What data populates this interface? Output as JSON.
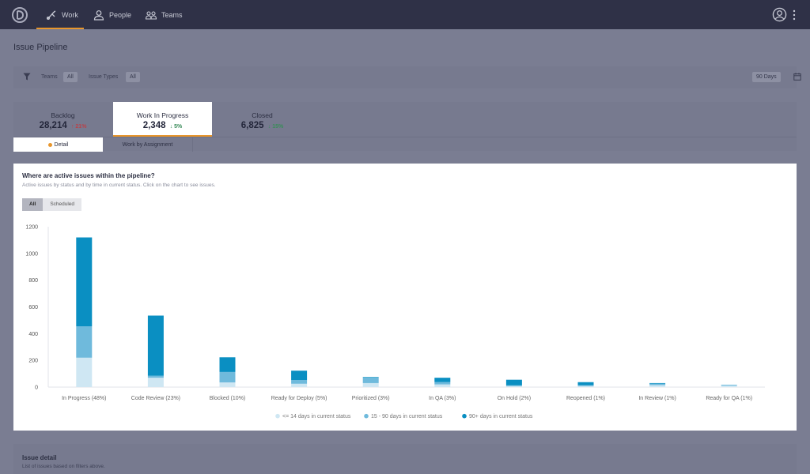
{
  "nav": {
    "items": [
      {
        "label": "Work",
        "icon": "work-icon"
      },
      {
        "label": "People",
        "icon": "person-icon"
      },
      {
        "label": "Teams",
        "icon": "teams-icon"
      }
    ]
  },
  "page": {
    "title": "Issue Pipeline"
  },
  "filters": {
    "teams_label": "Teams",
    "teams_value": "All",
    "types_label": "Issue Types",
    "types_value": "All",
    "range": "90 Days"
  },
  "summary": {
    "tabs": [
      {
        "title": "Backlog",
        "value": "28,214",
        "delta": "21%",
        "direction": "up"
      },
      {
        "title": "Work In Progress",
        "value": "2,348",
        "delta": "5%",
        "direction": "down"
      },
      {
        "title": "Closed",
        "value": "6,825",
        "delta": "15%",
        "direction": "down"
      }
    ],
    "subtabs": [
      "Detail",
      "Work by Assignment"
    ]
  },
  "card": {
    "title": "Where are active issues within the pipeline?",
    "subtitle": "Active issues by status and by time in current status. Click on the chart to see issues.",
    "toggle": [
      "All",
      "Scheduled"
    ]
  },
  "chart_data": {
    "type": "bar",
    "stacked": true,
    "categories": [
      "In Progress (48%)",
      "Code Review (23%)",
      "Blocked (10%)",
      "Ready for Deploy (5%)",
      "Prioritized (3%)",
      "In QA (3%)",
      "On Hold (2%)",
      "Reopened (1%)",
      "In Review (1%)",
      "Ready for QA (1%)"
    ],
    "series": [
      {
        "name": "<= 14 days in current status",
        "color": "#cfe7f3",
        "values": [
          220,
          70,
          35,
          25,
          30,
          20,
          8,
          8,
          15,
          12
        ]
      },
      {
        "name": "15 - 90 days in current status",
        "color": "#6fbadc",
        "values": [
          235,
          15,
          78,
          28,
          40,
          18,
          5,
          7,
          10,
          6
        ]
      },
      {
        "name": "90+ days in current status",
        "color": "#0a8fc2",
        "values": [
          665,
          450,
          110,
          70,
          5,
          32,
          42,
          22,
          5,
          0
        ]
      }
    ],
    "ylim": [
      0,
      1200
    ],
    "yticks": [
      0,
      200,
      400,
      600,
      800,
      1000,
      1200
    ],
    "legend": "bottom"
  },
  "detail": {
    "title": "Issue detail",
    "subtitle": "List of issues based on filters above."
  }
}
